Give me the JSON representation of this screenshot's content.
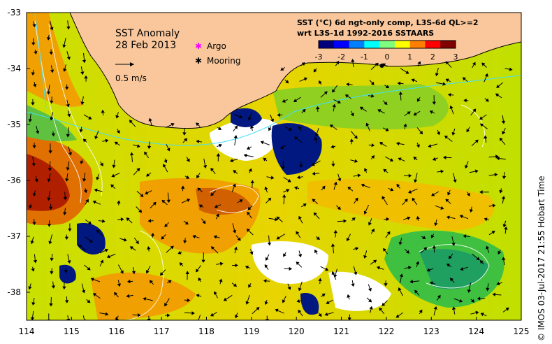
{
  "map": {
    "title": "SST Anomaly",
    "date": "28 Feb 2013",
    "vector_scale_label": "0.5 m/s",
    "legend": {
      "argo_label": "Argo",
      "mooring_label": "Mooring",
      "argo_color": "#ff00ff",
      "mooring_color": "#000000"
    },
    "colorbar": {
      "line1": "SST (°C) 6d ngt-only comp, L3S-6d QL>=2",
      "line2": "wrt L3S-1d 1992-2016 SSTAARS",
      "ticks": [
        "-3",
        "-2",
        "-1",
        "0",
        "1",
        "2",
        "3"
      ],
      "colors": [
        "#00007f",
        "#0000ff",
        "#007fff",
        "#00ffff",
        "#7fff7f",
        "#ffff00",
        "#ff7f00",
        "#ff0000",
        "#7f0000"
      ]
    },
    "x_ticks": [
      "114",
      "115",
      "116",
      "117",
      "118",
      "119",
      "120",
      "121",
      "122",
      "123",
      "124",
      "125"
    ],
    "y_ticks": [
      "-33",
      "-34",
      "-35",
      "-36",
      "-37",
      "-38"
    ],
    "land_color": "#f9c79b",
    "credit": "©  IMOS 03-Jul-2017 21:55 Hobart Time",
    "mooring_position": {
      "lon": 121.9,
      "lat": -33.95
    }
  }
}
